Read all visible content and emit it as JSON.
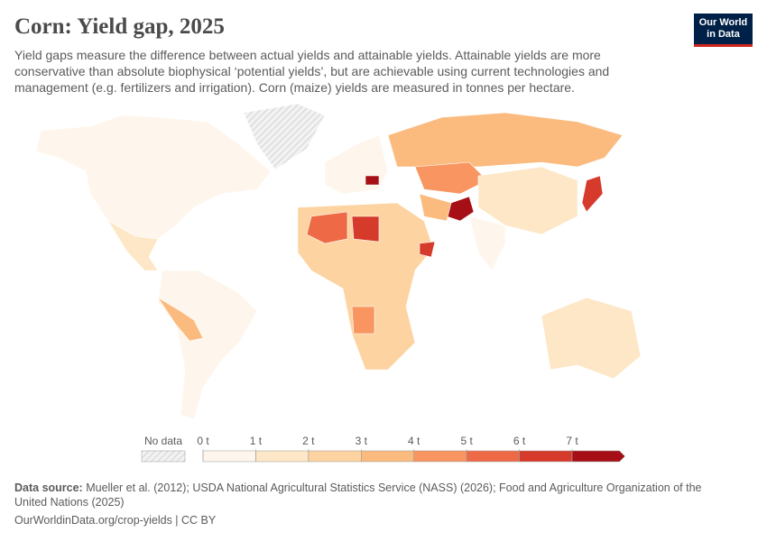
{
  "header": {
    "title": "Corn: Yield gap, 2025",
    "subtitle": "Yield gaps measure the difference between actual yields and attainable yields. Attainable yields are more conservative than absolute biophysical ‘potential yields’, but are achievable using current technologies and management (e.g. fertilizers and irrigation). Corn (maize) yields are measured in tonnes per hectare.",
    "logo": [
      "Our World",
      "in Data"
    ]
  },
  "legend": {
    "no_data": "No data",
    "ticks": [
      {
        "value": 0,
        "label": "0 t"
      },
      {
        "value": 1,
        "label": "1 t"
      },
      {
        "value": 2,
        "label": "2 t"
      },
      {
        "value": 3,
        "label": "3 t"
      },
      {
        "value": 4,
        "label": "4 t"
      },
      {
        "value": 5,
        "label": "5 t"
      },
      {
        "value": 6,
        "label": "6 t"
      },
      {
        "value": 7,
        "label": "7 t"
      }
    ],
    "colors": [
      "#fef6ec",
      "#fde7c6",
      "#fcd3a1",
      "#fbba7e",
      "#f89560",
      "#ee6a47",
      "#d63a2b",
      "#a50f15"
    ]
  },
  "footer": {
    "source_label": "Data source:",
    "source": "Mueller et al. (2012); USDA National Agricultural Statistics Service (NASS) (2026); Food and Agriculture Organization of the United Nations (2025)",
    "url": "OurWorldinData.org/crop-yields | CC BY"
  }
}
